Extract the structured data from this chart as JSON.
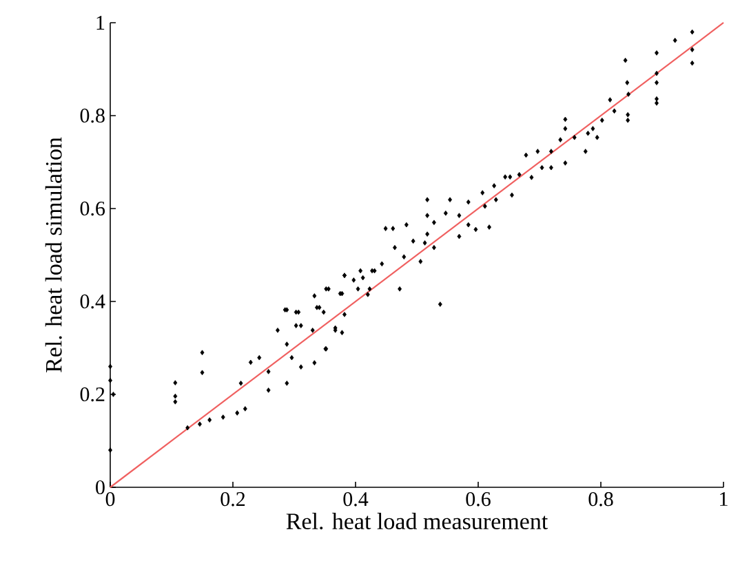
{
  "chart_data": {
    "type": "scatter",
    "xlabel": "Rel. heat load measurement",
    "ylabel": "Rel. heat load simulation",
    "xlim": [
      0,
      1
    ],
    "ylim": [
      0,
      1
    ],
    "xticks": [
      0,
      0.2,
      0.4,
      0.6,
      0.8,
      1
    ],
    "yticks": [
      0,
      0.2,
      0.4,
      0.6,
      0.8,
      1
    ],
    "grid": false,
    "series": [
      {
        "color": "#000000",
        "marker": "diamond",
        "x": [
          0,
          0,
          0.005,
          0,
          0.106,
          0.106,
          0.106,
          0.15,
          0.15,
          0.126,
          0.146,
          0.162,
          0.184,
          0.207,
          0.22,
          0.213,
          0.229,
          0.243,
          0.258,
          0.258,
          0.273,
          0.288,
          0.288,
          0.296,
          0.303,
          0.311,
          0.311,
          0.333,
          0.341,
          0.351,
          0.356,
          0.378,
          0.382,
          0.397,
          0.408,
          0.431,
          0.423,
          0.367,
          0.288,
          0.949,
          0.921,
          0.949,
          0.949,
          0.84,
          0.891,
          0.891,
          0.891,
          0.891,
          0.891,
          0.843,
          0.845,
          0.844,
          0.844,
          0.815,
          0.822,
          0.802,
          0.787,
          0.794,
          0.779,
          0.775,
          0.757,
          0.742,
          0.742,
          0.734,
          0.719,
          0.742,
          0.719,
          0.704,
          0.678,
          0.697,
          0.687,
          0.667,
          0.644,
          0.652,
          0.655,
          0.626,
          0.607,
          0.629,
          0.611,
          0.584,
          0.569,
          0.584,
          0.596,
          0.618,
          0.569,
          0.554,
          0.547,
          0.517,
          0.517,
          0.528,
          0.517,
          0.528,
          0.513,
          0.538,
          0.506,
          0.483,
          0.449,
          0.461,
          0.464,
          0.479,
          0.494,
          0.472,
          0.443,
          0.427,
          0.412,
          0.382,
          0.404,
          0.42,
          0.375,
          0.352,
          0.333,
          0.382,
          0.367,
          0.378,
          0.352,
          0.348,
          0.337,
          0.307,
          0.303,
          0.285,
          0.33
        ],
        "values": [
          0.26,
          0.23,
          0.2,
          0.08,
          0.225,
          0.196,
          0.184,
          0.29,
          0.247,
          0.128,
          0.136,
          0.145,
          0.151,
          0.16,
          0.169,
          0.224,
          0.269,
          0.279,
          0.249,
          0.209,
          0.338,
          0.308,
          0.224,
          0.279,
          0.377,
          0.348,
          0.259,
          0.268,
          0.387,
          0.298,
          0.427,
          0.417,
          0.456,
          0.446,
          0.466,
          0.466,
          0.427,
          0.338,
          0.382,
          0.98,
          0.962,
          0.942,
          0.913,
          0.919,
          0.935,
          0.891,
          0.871,
          0.836,
          0.827,
          0.871,
          0.846,
          0.802,
          0.79,
          0.834,
          0.81,
          0.79,
          0.772,
          0.753,
          0.762,
          0.723,
          0.753,
          0.792,
          0.772,
          0.748,
          0.723,
          0.698,
          0.688,
          0.688,
          0.715,
          0.723,
          0.667,
          0.673,
          0.668,
          0.668,
          0.629,
          0.649,
          0.634,
          0.619,
          0.605,
          0.614,
          0.585,
          0.565,
          0.555,
          0.56,
          0.54,
          0.619,
          0.59,
          0.619,
          0.585,
          0.57,
          0.545,
          0.516,
          0.526,
          0.394,
          0.486,
          0.565,
          0.557,
          0.557,
          0.516,
          0.496,
          0.53,
          0.427,
          0.481,
          0.466,
          0.451,
          0.456,
          0.427,
          0.415,
          0.417,
          0.427,
          0.412,
          0.372,
          0.343,
          0.333,
          0.298,
          0.377,
          0.387,
          0.377,
          0.348,
          0.382,
          0.338
        ]
      },
      {
        "type": "line",
        "color": "#f06060",
        "marker": "none",
        "x": [
          0,
          1
        ],
        "values": [
          0,
          1
        ]
      }
    ]
  }
}
